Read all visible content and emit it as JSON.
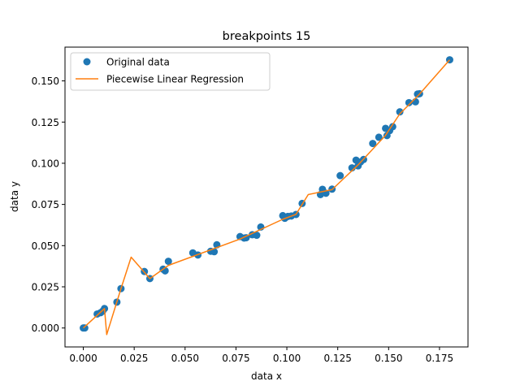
{
  "chart_data": {
    "type": "line",
    "title": "breakpoints 15",
    "xlabel": "data x",
    "ylabel": "data y",
    "xlim": [
      -0.009,
      0.189
    ],
    "ylim": [
      -0.0115,
      0.1705
    ],
    "xticks": [
      0.0,
      0.025,
      0.05,
      0.075,
      0.1,
      0.125,
      0.15,
      0.175
    ],
    "xtick_labels": [
      "0.000",
      "0.025",
      "0.050",
      "0.075",
      "0.100",
      "0.125",
      "0.150",
      "0.175"
    ],
    "yticks": [
      0.0,
      0.025,
      0.05,
      0.075,
      0.1,
      0.125,
      0.15
    ],
    "ytick_labels": [
      "0.000",
      "0.025",
      "0.050",
      "0.075",
      "0.100",
      "0.125",
      "0.150"
    ],
    "grid": false,
    "legend_position": "upper-left",
    "colors": {
      "scatter": "#1f77b4",
      "line": "#ff7f0e"
    },
    "scatter": {
      "name": "Original data",
      "points": [
        [
          0.0,
          0.0
        ],
        [
          0.0007,
          0.0
        ],
        [
          0.0068,
          0.0085
        ],
        [
          0.0085,
          0.0093
        ],
        [
          0.0095,
          0.0102
        ],
        [
          0.0104,
          0.0118
        ],
        [
          0.0165,
          0.0157
        ],
        [
          0.0185,
          0.0239
        ],
        [
          0.03,
          0.0343
        ],
        [
          0.0327,
          0.03
        ],
        [
          0.0392,
          0.0357
        ],
        [
          0.0402,
          0.0347
        ],
        [
          0.0418,
          0.0405
        ],
        [
          0.0538,
          0.0456
        ],
        [
          0.0563,
          0.0443
        ],
        [
          0.0626,
          0.0466
        ],
        [
          0.0643,
          0.0463
        ],
        [
          0.0656,
          0.0505
        ],
        [
          0.077,
          0.0555
        ],
        [
          0.079,
          0.0546
        ],
        [
          0.08,
          0.0548
        ],
        [
          0.083,
          0.0566
        ],
        [
          0.0852,
          0.0563
        ],
        [
          0.0872,
          0.0613
        ],
        [
          0.098,
          0.0682
        ],
        [
          0.099,
          0.0666
        ],
        [
          0.1005,
          0.0677
        ],
        [
          0.1022,
          0.068
        ],
        [
          0.1045,
          0.0689
        ],
        [
          0.1075,
          0.0756
        ],
        [
          0.1165,
          0.081
        ],
        [
          0.1175,
          0.0842
        ],
        [
          0.1192,
          0.0818
        ],
        [
          0.1222,
          0.0843
        ],
        [
          0.1262,
          0.0925
        ],
        [
          0.132,
          0.0972
        ],
        [
          0.134,
          0.1019
        ],
        [
          0.135,
          0.0984
        ],
        [
          0.1362,
          0.1008
        ],
        [
          0.1377,
          0.1023
        ],
        [
          0.1422,
          0.112
        ],
        [
          0.1452,
          0.1158
        ],
        [
          0.1485,
          0.1212
        ],
        [
          0.1492,
          0.1168
        ],
        [
          0.1505,
          0.1198
        ],
        [
          0.152,
          0.1222
        ],
        [
          0.1555,
          0.1312
        ],
        [
          0.16,
          0.1368
        ],
        [
          0.1632,
          0.1373
        ],
        [
          0.1642,
          0.142
        ],
        [
          0.1652,
          0.1422
        ],
        [
          0.18,
          0.1628
        ]
      ]
    },
    "line": {
      "name": "Piecewise Linear Regression",
      "points": [
        [
          0.0,
          0.0
        ],
        [
          0.0104,
          0.0118
        ],
        [
          0.0115,
          -0.004
        ],
        [
          0.0185,
          0.0239
        ],
        [
          0.0235,
          0.043
        ],
        [
          0.0327,
          0.03
        ],
        [
          0.0418,
          0.038
        ],
        [
          0.077,
          0.054
        ],
        [
          0.098,
          0.066
        ],
        [
          0.1045,
          0.069
        ],
        [
          0.1105,
          0.081
        ],
        [
          0.1222,
          0.084
        ],
        [
          0.135,
          0.099
        ],
        [
          0.1485,
          0.117
        ],
        [
          0.1555,
          0.13
        ],
        [
          0.1652,
          0.142
        ],
        [
          0.18,
          0.1628
        ]
      ]
    }
  }
}
